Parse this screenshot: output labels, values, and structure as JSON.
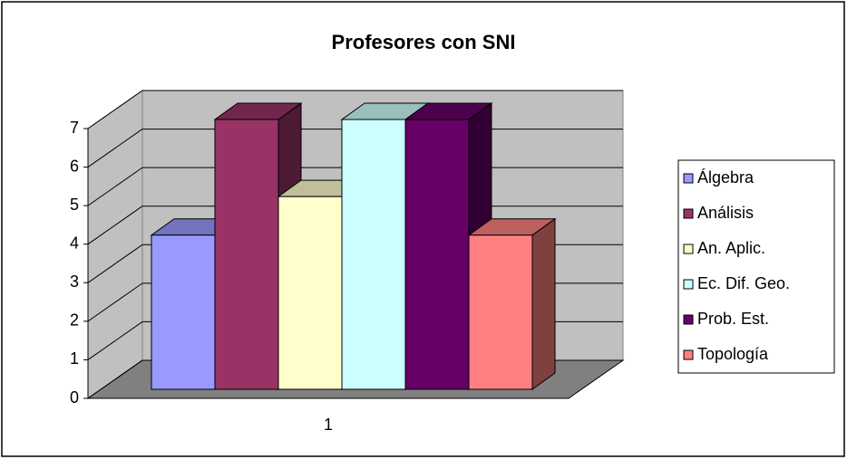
{
  "chart_data": {
    "type": "bar3d",
    "title": "Profesores con SNI",
    "categories": [
      "1"
    ],
    "series": [
      {
        "name": "Álgebra",
        "color": "#9999ff",
        "values": [
          4
        ]
      },
      {
        "name": "Análisis",
        "color": "#993366",
        "values": [
          7
        ]
      },
      {
        "name": "An. Aplic.",
        "color": "#ffffcc",
        "values": [
          5
        ]
      },
      {
        "name": "Ec. Dif. Geo.",
        "color": "#ccffff",
        "values": [
          7
        ]
      },
      {
        "name": "Prob. Est.",
        "color": "#660066",
        "values": [
          7
        ]
      },
      {
        "name": "Topología",
        "color": "#ff8080",
        "values": [
          4
        ]
      }
    ],
    "ylim": [
      0,
      7
    ],
    "yticks": [
      0,
      1,
      2,
      3,
      4,
      5,
      6,
      7
    ],
    "grid": true,
    "legend": "right"
  }
}
